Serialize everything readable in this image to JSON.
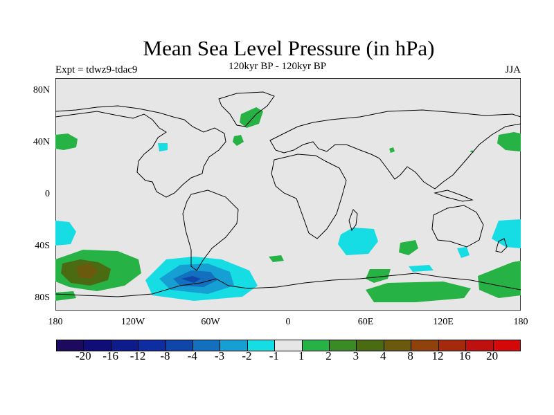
{
  "title": "Mean Sea Level Pressure (in hPa)",
  "experiment": "Expt = tdwz9-tdac9",
  "subtitle": "120kyr BP - 120kyr BP",
  "season": "JJA",
  "lat_labels": [
    "80N",
    "40N",
    "0",
    "40S",
    "80S"
  ],
  "lon_labels": [
    "180",
    "120W",
    "60W",
    "0",
    "60E",
    "120E",
    "180"
  ],
  "colorbar": {
    "labels": [
      "-20",
      "-16",
      "-12",
      "-8",
      "-4",
      "-3",
      "-2",
      "-1",
      "1",
      "2",
      "3",
      "4",
      "8",
      "12",
      "16",
      "20"
    ],
    "colors": [
      "#1d0a5e",
      "#100c78",
      "#0d1b8c",
      "#0e2da0",
      "#0e47a8",
      "#1270bf",
      "#159fd2",
      "#16dce4",
      "#e6e6e6",
      "#27b245",
      "#3a8a26",
      "#4b6b12",
      "#6b5a0e",
      "#8f420c",
      "#a32a0c",
      "#bf1010",
      "#d40808"
    ]
  },
  "map_colors": {
    "background": "#e6e6e6",
    "coast": "#000000"
  }
}
